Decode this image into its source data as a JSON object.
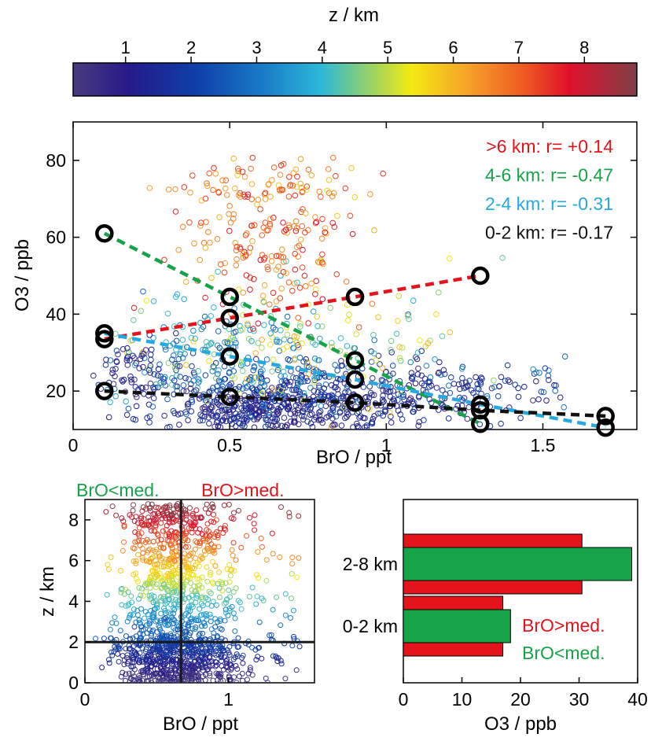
{
  "colorbar": {
    "title": "z / km",
    "ticks": [
      "1",
      "2",
      "3",
      "4",
      "5",
      "6",
      "7",
      "8"
    ],
    "tick_values": [
      1,
      2,
      3,
      4,
      5,
      6,
      7,
      8
    ],
    "range": [
      0.2,
      8.8
    ]
  },
  "chart_data": [
    {
      "type": "scatter",
      "xlabel": "BrO / ppt",
      "ylabel": "O3 / ppb",
      "xlim": [
        0,
        1.8
      ],
      "ylim": [
        10,
        90
      ],
      "xticks": [
        0,
        0.5,
        1,
        1.5
      ],
      "xtick_labels": [
        "0",
        "0.5",
        "1",
        "1.5"
      ],
      "yticks": [
        20,
        40,
        60,
        80
      ],
      "ytick_labels": [
        "20",
        "40",
        "60",
        "80"
      ],
      "point_color_by": "z / km",
      "legend": [
        {
          "text": ">6 km: r= +0.14",
          "color": "#e3141b"
        },
        {
          "text": "4-6 km: r= -0.47",
          "color": "#17a349"
        },
        {
          "text": "2-4 km: r= -0.31",
          "color": "#26a9df"
        },
        {
          "text": "0-2 km: r= -0.17",
          "color": "#111111"
        }
      ],
      "binned_means": [
        {
          "band": ">6 km",
          "color": "#e3141b",
          "points": [
            [
              0.1,
              33.5
            ],
            [
              0.5,
              39
            ],
            [
              0.9,
              44.5
            ],
            [
              1.3,
              50
            ]
          ]
        },
        {
          "band": "4-6 km",
          "color": "#17a349",
          "points": [
            [
              0.1,
              61
            ],
            [
              0.5,
              44.5
            ],
            [
              0.9,
              28
            ],
            [
              1.3,
              11.5
            ]
          ]
        },
        {
          "band": "2-4 km",
          "color": "#26a9df",
          "points": [
            [
              0.1,
              35
            ],
            [
              0.5,
              29
            ],
            [
              0.9,
              23
            ],
            [
              1.3,
              16.5
            ],
            [
              1.7,
              10.5
            ]
          ]
        },
        {
          "band": "0-2 km",
          "color": "#111111",
          "points": [
            [
              0.1,
              20
            ],
            [
              0.5,
              18.5
            ],
            [
              0.9,
              17
            ],
            [
              1.3,
              15
            ],
            [
              1.7,
              13.5
            ]
          ]
        }
      ]
    },
    {
      "type": "scatter",
      "xlabel": "BrO / ppt",
      "ylabel": "z / km",
      "xlim": [
        0,
        1.6
      ],
      "ylim": [
        0,
        9
      ],
      "xticks": [
        0,
        1
      ],
      "xtick_labels": [
        "0",
        "1"
      ],
      "yticks": [
        0,
        2,
        4,
        6,
        8
      ],
      "ytick_labels": [
        "0",
        "2",
        "4",
        "6",
        "8"
      ],
      "point_color_by": "z / km",
      "median_bro": 0.67,
      "split_height": 2,
      "region_labels": [
        {
          "text": "BrO<med.",
          "color": "#17a349"
        },
        {
          "text": "BrO>med.",
          "color": "#e3141b"
        }
      ]
    },
    {
      "type": "bar",
      "orientation": "horizontal",
      "categories": [
        "2-8 km",
        "0-2 km"
      ],
      "xlabel": "O3 / ppb",
      "xlim": [
        0,
        40
      ],
      "xticks": [
        0,
        10,
        20,
        30,
        40
      ],
      "xtick_labels": [
        "0",
        "10",
        "20",
        "30",
        "40"
      ],
      "series": [
        {
          "name": "BrO>med.",
          "color": "#e3141b",
          "values": [
            30.5,
            17
          ]
        },
        {
          "name": "BrO<med.",
          "color": "#17a349",
          "values": [
            39,
            18.3
          ]
        }
      ],
      "legend": [
        {
          "text": "BrO>med.",
          "color": "#e3141b"
        },
        {
          "text": "BrO<med.",
          "color": "#17a349"
        }
      ]
    }
  ]
}
